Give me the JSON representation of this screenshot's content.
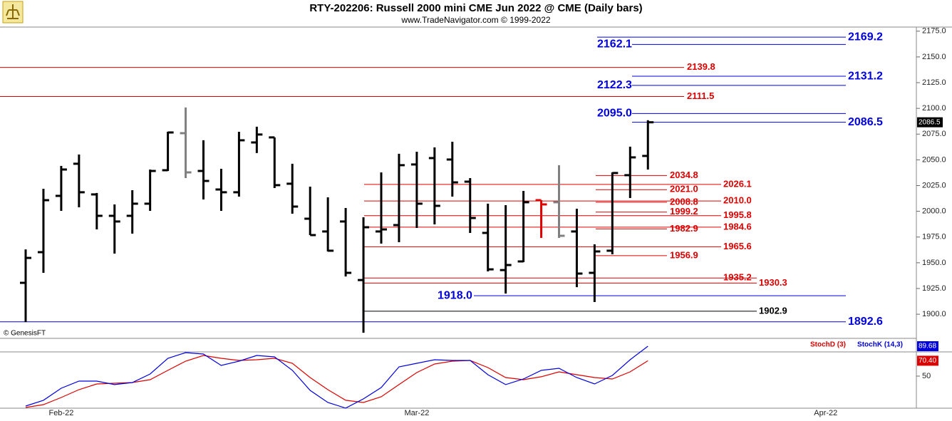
{
  "chart_data": [
    {
      "type": "ohlc",
      "title": "RTY-202206:  Russell 2000 mini CME Jun 2022 @ CME  (Daily bars)",
      "subtitle": "www.TradeNavigator.com © 1999-2022",
      "source": "© GenesisFT",
      "categories": [
        null,
        null,
        "Feb-22",
        null,
        null,
        null,
        null,
        null,
        null,
        null,
        null,
        null,
        null,
        null,
        null,
        null,
        null,
        null,
        null,
        null,
        null,
        null,
        "Mar-22",
        null,
        null,
        null,
        null,
        null,
        null,
        null,
        null,
        null,
        null,
        null,
        null,
        null,
        null,
        null,
        null,
        null,
        null,
        null,
        null,
        null,
        null,
        "Apr-22",
        null,
        null,
        null,
        null
      ],
      "open": [
        1930.5,
        1960.3,
        2015.0,
        2046.2,
        2016.4,
        1995.6,
        1995.6,
        2007.4,
        2039.9,
        2075.9,
        2039.2,
        2021.2,
        2018.5,
        2066.9,
        2071.8,
        2026.8,
        1992.8,
        1980.4,
        1990.1,
        1933.2,
        1980.4,
        1986.6,
        2045.5,
        2051.7,
        2050.3,
        2028.8,
        1979.0,
        1942.9,
        1951.3,
        2010.8,
        2008.8,
        1980.4,
        1940.2,
        1961.7,
        2035.1,
        2053.8,
        null,
        null,
        null,
        null,
        null,
        null,
        null,
        null,
        null,
        null,
        null,
        null,
        null,
        null
      ],
      "high": [
        1963.0,
        2021.9,
        2044.1,
        2055.2,
        2017.8,
        2006.7,
        2020.5,
        2040.6,
        2077.3,
        2100.9,
        2069.0,
        2041.3,
        2077.3,
        2082.2,
        2071.8,
        2046.2,
        2024.0,
        2013.6,
        2003.2,
        1994.2,
        2037.8,
        2055.9,
        2057.9,
        2062.1,
        2067.6,
        2032.3,
        2007.4,
        2006.0,
        2019.8,
        2010.8,
        2044.8,
        2002.5,
        1967.9,
        2037.8,
        2062.8,
        2088.5,
        null,
        null,
        null,
        null,
        null,
        null,
        null,
        null,
        null,
        null,
        null,
        null,
        null,
        null
      ],
      "low": [
        1892.4,
        1940.2,
        2000.4,
        2003.9,
        1982.4,
        1958.9,
        1978.3,
        2000.4,
        2039.2,
        2032.3,
        2011.5,
        2000.4,
        2014.3,
        2056.6,
        2022.6,
        1997.7,
        1976.9,
        1961.0,
        1936.7,
        1882.0,
        1968.6,
        1970.0,
        1983.8,
        1987.3,
        2014.3,
        1979.0,
        1941.6,
        1920.1,
        1950.6,
        1974.1,
        1974.1,
        1926.3,
        1911.8,
        1958.2,
        2012.9,
        2040.6,
        null,
        null,
        null,
        null,
        null,
        null,
        null,
        null,
        null,
        null,
        null,
        null,
        null,
        null
      ],
      "close": [
        1954.7,
        2010.8,
        2040.6,
        2018.5,
        1995.6,
        1990.1,
        2007.4,
        2039.2,
        2076.6,
        2037.8,
        2029.5,
        2018.5,
        2069.0,
        2074.6,
        2025.4,
        2004.6,
        1976.9,
        1961.7,
        1940.2,
        1984.5,
        1982.4,
        2044.8,
        2007.4,
        2005.3,
        2028.1,
        1993.5,
        1943.6,
        1947.8,
        2008.8,
        2006.7,
        1976.2,
        1939.5,
        1961.0,
        2037.2,
        2052.4,
        2086.5,
        null,
        null,
        null,
        null,
        null,
        null,
        null,
        null,
        null,
        null,
        null,
        null,
        null,
        null
      ],
      "colors": [
        "#000000",
        "#000000",
        "#000000",
        "#000000",
        "#000000",
        "#000000",
        "#000000",
        "#000000",
        "#000000",
        "#808080",
        "#000000",
        "#000000",
        "#000000",
        "#000000",
        "#000000",
        "#000000",
        "#000000",
        "#000000",
        "#000000",
        "#000000",
        "#000000",
        "#000000",
        "#000000",
        "#000000",
        "#000000",
        "#000000",
        "#000000",
        "#000000",
        "#000000",
        "#e00000",
        "#808080",
        "#000000",
        "#000000",
        "#000000",
        "#000000",
        "#000000",
        null,
        null,
        null,
        null,
        null,
        null,
        null,
        null,
        null,
        null,
        null,
        null,
        null,
        null
      ],
      "last_label": "2086.5",
      "ylim": [
        1880,
        2179
      ],
      "yticks": [
        {
          "value": 1900,
          "label": "1900.0"
        },
        {
          "value": 1925,
          "label": "1925.0"
        },
        {
          "value": 1950,
          "label": "1950.0"
        },
        {
          "value": 1975,
          "label": "1975.0"
        },
        {
          "value": 2000,
          "label": "2000.0"
        },
        {
          "value": 2025,
          "label": "2025.0"
        },
        {
          "value": 2050,
          "label": "2050.0"
        },
        {
          "value": 2075,
          "label": "2075.0"
        },
        {
          "value": 2100,
          "label": "2100.0"
        },
        {
          "value": 2125,
          "label": "2125.0"
        },
        {
          "value": 2150,
          "label": "2150.0"
        },
        {
          "value": 2175,
          "label": "2175.0"
        }
      ],
      "levels": [
        {
          "value": 2169.2,
          "label": "2169.2",
          "color": "#0000dd"
        },
        {
          "value": 2162.1,
          "label": "2162.1",
          "color": "#0000dd"
        },
        {
          "value": 2139.8,
          "label": "2139.8",
          "color": "#dd0000"
        },
        {
          "value": 2131.2,
          "label": "2131.2",
          "color": "#0000dd"
        },
        {
          "value": 2122.3,
          "label": "2122.3",
          "color": "#0000dd"
        },
        {
          "value": 2111.5,
          "label": "2111.5",
          "color": "#dd0000"
        },
        {
          "value": 2095.0,
          "label": "2095.0",
          "color": "#0000dd"
        },
        {
          "value": 2086.5,
          "label": "2086.5",
          "color": "#0000dd"
        },
        {
          "value": 2034.8,
          "label": "2034.8",
          "color": "#dd0000"
        },
        {
          "value": 2026.1,
          "label": "2026.1",
          "color": "#dd0000"
        },
        {
          "value": 2021.0,
          "label": "2021.0",
          "color": "#dd0000"
        },
        {
          "value": 2010.0,
          "label": "2010.0",
          "color": "#dd0000"
        },
        {
          "value": 2008.8,
          "label": "2008.8",
          "color": "#dd0000"
        },
        {
          "value": 1999.2,
          "label": "1999.2",
          "color": "#dd0000"
        },
        {
          "value": 1995.8,
          "label": "1995.8",
          "color": "#dd0000"
        },
        {
          "value": 1984.6,
          "label": "1984.6",
          "color": "#dd0000"
        },
        {
          "value": 1982.9,
          "label": "1982.9",
          "color": "#dd0000"
        },
        {
          "value": 1965.6,
          "label": "1965.6",
          "color": "#dd0000"
        },
        {
          "value": 1956.9,
          "label": "1956.9",
          "color": "#dd0000"
        },
        {
          "value": 1935.2,
          "label": "1935.2",
          "color": "#dd0000"
        },
        {
          "value": 1930.3,
          "label": "1930.3",
          "color": "#dd0000"
        },
        {
          "value": 1918.0,
          "label": "1918.0",
          "color": "#0000dd"
        },
        {
          "value": 1902.9,
          "label": "1902.9",
          "color": "#000000"
        },
        {
          "value": 1892.6,
          "label": "1892.6",
          "color": "#0000dd"
        }
      ]
    },
    {
      "type": "line",
      "ylim": [
        6.5,
        98.2
      ],
      "yticks": [
        50
      ],
      "series": [
        {
          "name": "StochD (3)",
          "color": "#dd0000",
          "last_label": "70.40",
          "values": [
            8.4,
            12.2,
            21.6,
            32.0,
            39.6,
            40.5,
            41.5,
            45.3,
            57.6,
            69.8,
            77.4,
            73.6,
            70.8,
            71.7,
            73.6,
            67.0,
            48.1,
            32.0,
            17.9,
            15.0,
            22.6,
            38.7,
            54.7,
            66.1,
            69.8,
            70.8,
            61.3,
            48.1,
            45.3,
            49.1,
            55.7,
            51.9,
            48.1,
            46.2,
            55.7,
            70.4,
            null,
            null,
            null,
            null,
            null,
            null,
            null,
            null,
            null,
            null,
            null,
            null,
            null,
            null
          ]
        },
        {
          "name": "StochK (14,3)",
          "color": "#0000dd",
          "last_label": "89.68",
          "values": [
            10.3,
            17.9,
            33.9,
            43.4,
            43.4,
            38.7,
            41.5,
            52.8,
            73.6,
            81.2,
            79.3,
            64.2,
            69.8,
            77.4,
            75.5,
            57.6,
            31.1,
            15.0,
            7.5,
            19.8,
            34.9,
            62.3,
            67.0,
            71.7,
            70.8,
            70.8,
            51.9,
            38.7,
            46.2,
            57.6,
            60.4,
            48.1,
            39.6,
            50.9,
            71.7,
            89.68,
            null,
            null,
            null,
            null,
            null,
            null,
            null,
            null,
            null,
            null,
            null,
            null,
            null,
            null
          ]
        }
      ]
    }
  ]
}
